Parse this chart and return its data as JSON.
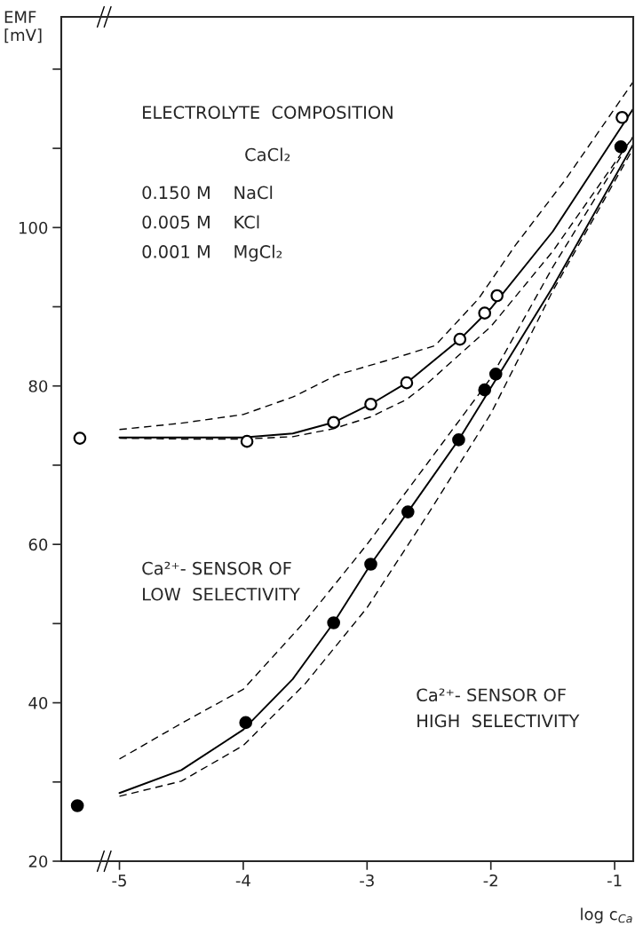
{
  "chart_data": {
    "type": "line",
    "xlabel": "log c$_{Ca}$",
    "ylabel": "EMF\n[mV]",
    "xlim": [
      -5.47,
      -0.85
    ],
    "ylim": [
      20,
      126.6
    ],
    "xticks": [
      -5,
      -4,
      -3,
      -2,
      -1
    ],
    "yticks": [
      20,
      {
        "value": 30,
        "label": null
      },
      40,
      {
        "value": 50,
        "label": null
      },
      60,
      {
        "value": 70,
        "label": null
      },
      80,
      {
        "value": 90,
        "label": null
      },
      100,
      {
        "value": 110,
        "label": null
      },
      {
        "value": 120,
        "label": null
      }
    ],
    "grid": false,
    "legend": false,
    "series": [
      {
        "type": "scatter",
        "marker": "circle",
        "color": "#ffffff",
        "x": [
          -5.32,
          -3.97,
          -3.27,
          -2.97,
          -2.68,
          -2.25,
          -2.05,
          -1.95,
          -0.94
        ],
        "values": [
          73.4,
          73.0,
          75.4,
          77.7,
          80.4,
          85.9,
          89.2,
          91.4,
          113.9
        ]
      },
      {
        "type": "scatter",
        "marker": "circle",
        "color": "#000000",
        "x": [
          -5.34,
          -3.98,
          -3.27,
          -2.97,
          -2.67,
          -2.26,
          -2.05,
          -1.96,
          -0.95
        ],
        "values": [
          27.0,
          37.5,
          50.1,
          57.5,
          64.1,
          73.2,
          79.5,
          81.5,
          110.2
        ]
      },
      {
        "line_style": "solid",
        "color": "#000000",
        "x": [
          -5.0,
          -4.5,
          -4.0,
          -3.6,
          -3.27,
          -2.97,
          -2.68,
          -2.25,
          -2.0,
          -1.5,
          -0.85
        ],
        "values": [
          73.5,
          73.5,
          73.5,
          74.0,
          75.4,
          77.7,
          80.4,
          85.9,
          89.8,
          99.5,
          115.0
        ]
      },
      {
        "line_style": "dashed",
        "color": "#000000",
        "x": [
          -5.0,
          -4.5,
          -4.0,
          -3.6,
          -3.24,
          -2.8,
          -2.45,
          -2.1,
          -1.8,
          -1.4,
          -0.85
        ],
        "values": [
          74.5,
          75.3,
          76.4,
          78.6,
          81.4,
          83.4,
          85.1,
          91.0,
          97.8,
          106.0,
          118.4
        ]
      },
      {
        "line_style": "dashed",
        "color": "#000000",
        "x": [
          -5.0,
          -4.5,
          -4.0,
          -3.6,
          -3.27,
          -2.97,
          -2.68,
          -2.5,
          -2.0,
          -1.5,
          -0.85
        ],
        "values": [
          73.4,
          73.3,
          73.3,
          73.6,
          74.6,
          76.1,
          78.3,
          80.5,
          87.5,
          97.0,
          111.5
        ]
      },
      {
        "line_style": "solid",
        "color": "#000000",
        "x": [
          -5.0,
          -4.5,
          -4.0,
          -3.6,
          -3.27,
          -2.97,
          -2.67,
          -2.26,
          -2.05,
          -1.5,
          -0.85
        ],
        "values": [
          28.6,
          31.5,
          36.6,
          43.0,
          50.1,
          57.5,
          64.1,
          73.2,
          78.5,
          92.5,
          110.5
        ]
      },
      {
        "line_style": "dashed",
        "color": "#000000",
        "x": [
          -5.0,
          -4.5,
          -4.0,
          -3.5,
          -3.0,
          -2.5,
          -2.0,
          -1.5,
          -0.85
        ],
        "values": [
          32.9,
          37.4,
          41.7,
          50.3,
          60.0,
          70.5,
          81.0,
          95.0,
          111.5
        ]
      },
      {
        "line_style": "dashed",
        "color": "#000000",
        "x": [
          -5.0,
          -4.5,
          -4.0,
          -3.5,
          -3.0,
          -2.5,
          -2.0,
          -1.5,
          -0.85
        ],
        "values": [
          28.2,
          30.1,
          34.6,
          42.4,
          52.0,
          64.0,
          76.5,
          92.0,
          110.0
        ]
      }
    ],
    "annotations": [
      "ELECTROLYTE  COMPOSITION",
      "CaCl₂",
      "0.150 M    NaCl",
      "0.005 M    KCl",
      "0.001 M    MgCl₂",
      "Ca²⁺- SENSOR OF\nLOW  SELECTIVITY",
      "Ca²⁺- SENSOR OF\nHIGH  SELECTIVITY"
    ]
  }
}
